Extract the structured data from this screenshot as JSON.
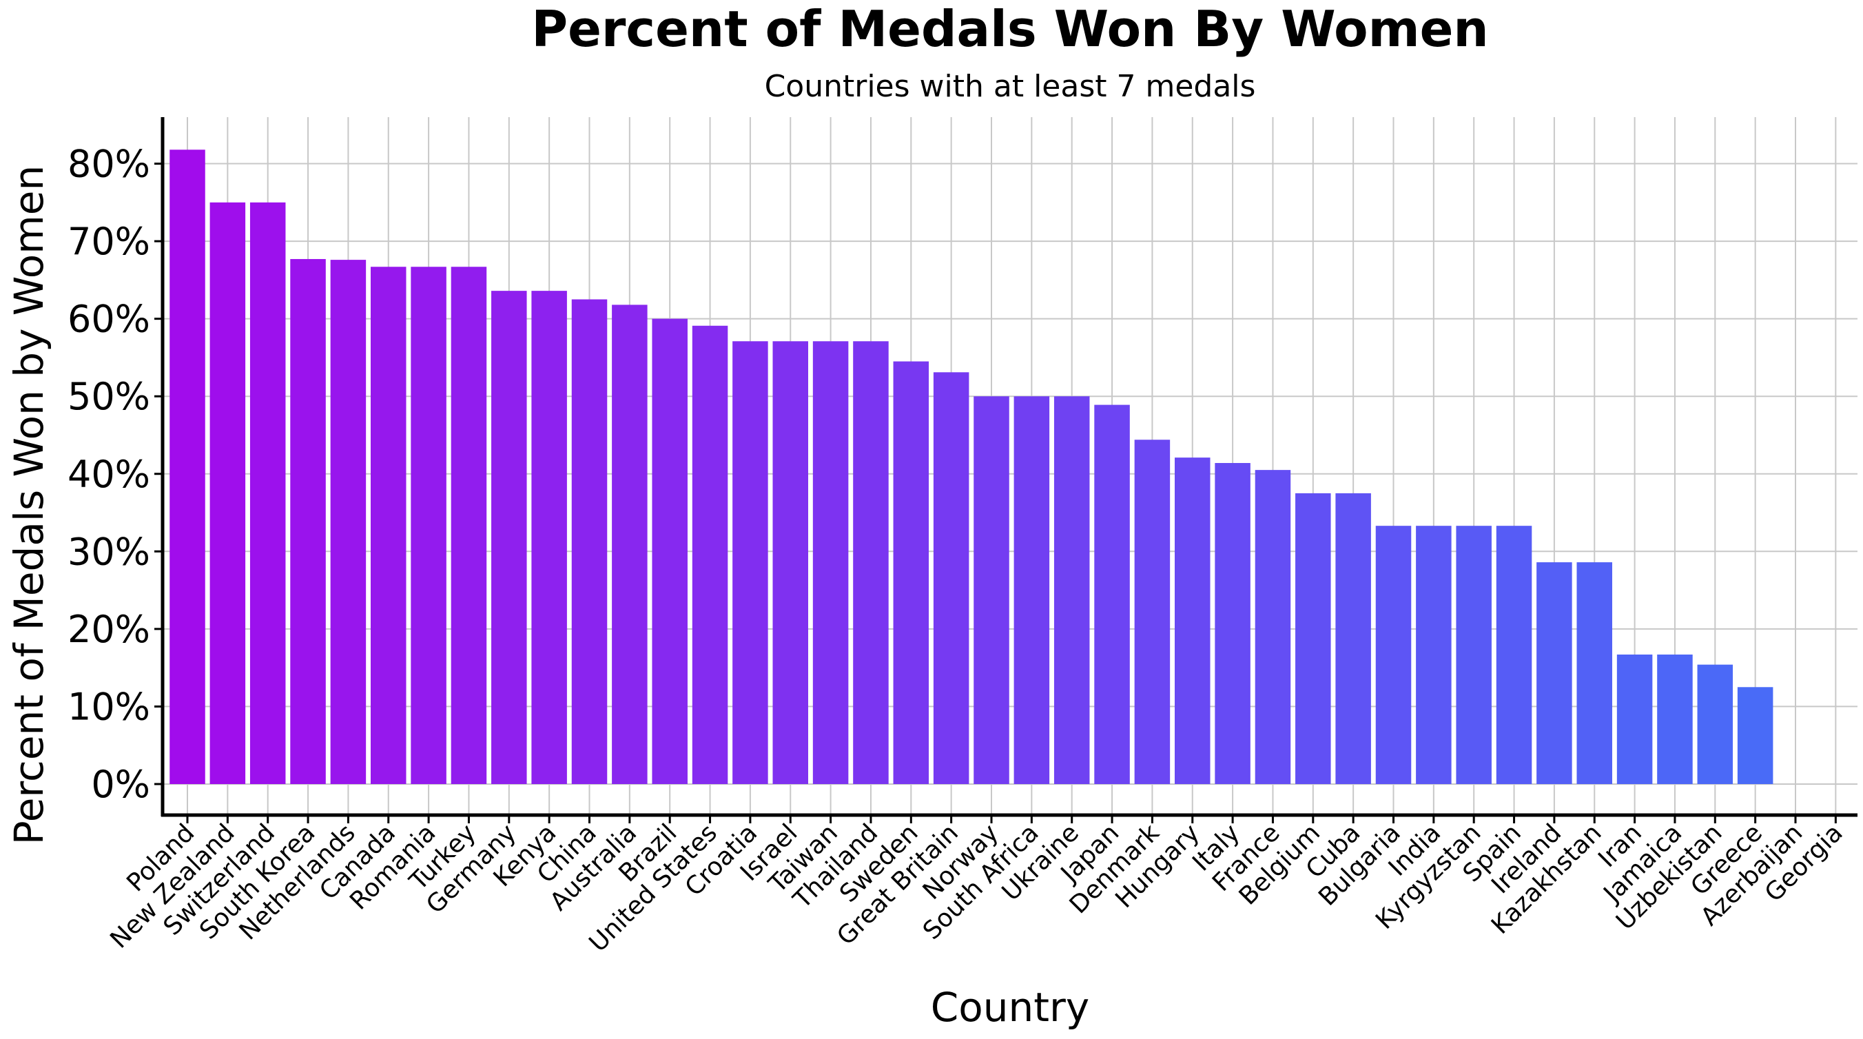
{
  "chart_data": {
    "type": "bar",
    "title": "Percent of Medals Won By Women",
    "subtitle": "Countries with at least 7 medals",
    "xlabel": "Country",
    "ylabel": "Percent of Medals Won by Women",
    "ylim": [
      -4,
      86
    ],
    "yticks": [
      0,
      10,
      20,
      30,
      40,
      50,
      60,
      70,
      80
    ],
    "ytick_labels": [
      "0%",
      "10%",
      "20%",
      "30%",
      "40%",
      "50%",
      "60%",
      "70%",
      "80%"
    ],
    "grid": true,
    "color_start": "#a10cec",
    "color_end": "#4470f8",
    "categories": [
      "Poland",
      "New Zealand",
      "Switzerland",
      "South Korea",
      "Netherlands",
      "Canada",
      "Romania",
      "Turkey",
      "Germany",
      "Kenya",
      "China",
      "Australia",
      "Brazil",
      "United States",
      "Croatia",
      "Israel",
      "Taiwan",
      "Thailand",
      "Sweden",
      "Great Britain",
      "Norway",
      "South Africa",
      "Ukraine",
      "Japan",
      "Denmark",
      "Hungary",
      "Italy",
      "France",
      "Belgium",
      "Cuba",
      "Bulgaria",
      "India",
      "Kyrgyzstan",
      "Spain",
      "Ireland",
      "Kazakhstan",
      "Iran",
      "Jamaica",
      "Uzbekistan",
      "Greece",
      "Azerbaijan",
      "Georgia"
    ],
    "values": [
      81.8,
      75.0,
      75.0,
      67.7,
      67.6,
      66.7,
      66.7,
      66.7,
      63.6,
      63.6,
      62.5,
      61.8,
      60.0,
      59.1,
      57.1,
      57.1,
      57.1,
      57.1,
      54.5,
      53.1,
      50.0,
      50.0,
      50.0,
      48.9,
      44.4,
      42.1,
      41.4,
      40.5,
      37.5,
      37.5,
      33.3,
      33.3,
      33.3,
      33.3,
      28.6,
      28.6,
      16.7,
      16.7,
      15.4,
      12.5,
      0.0,
      0.0
    ]
  }
}
